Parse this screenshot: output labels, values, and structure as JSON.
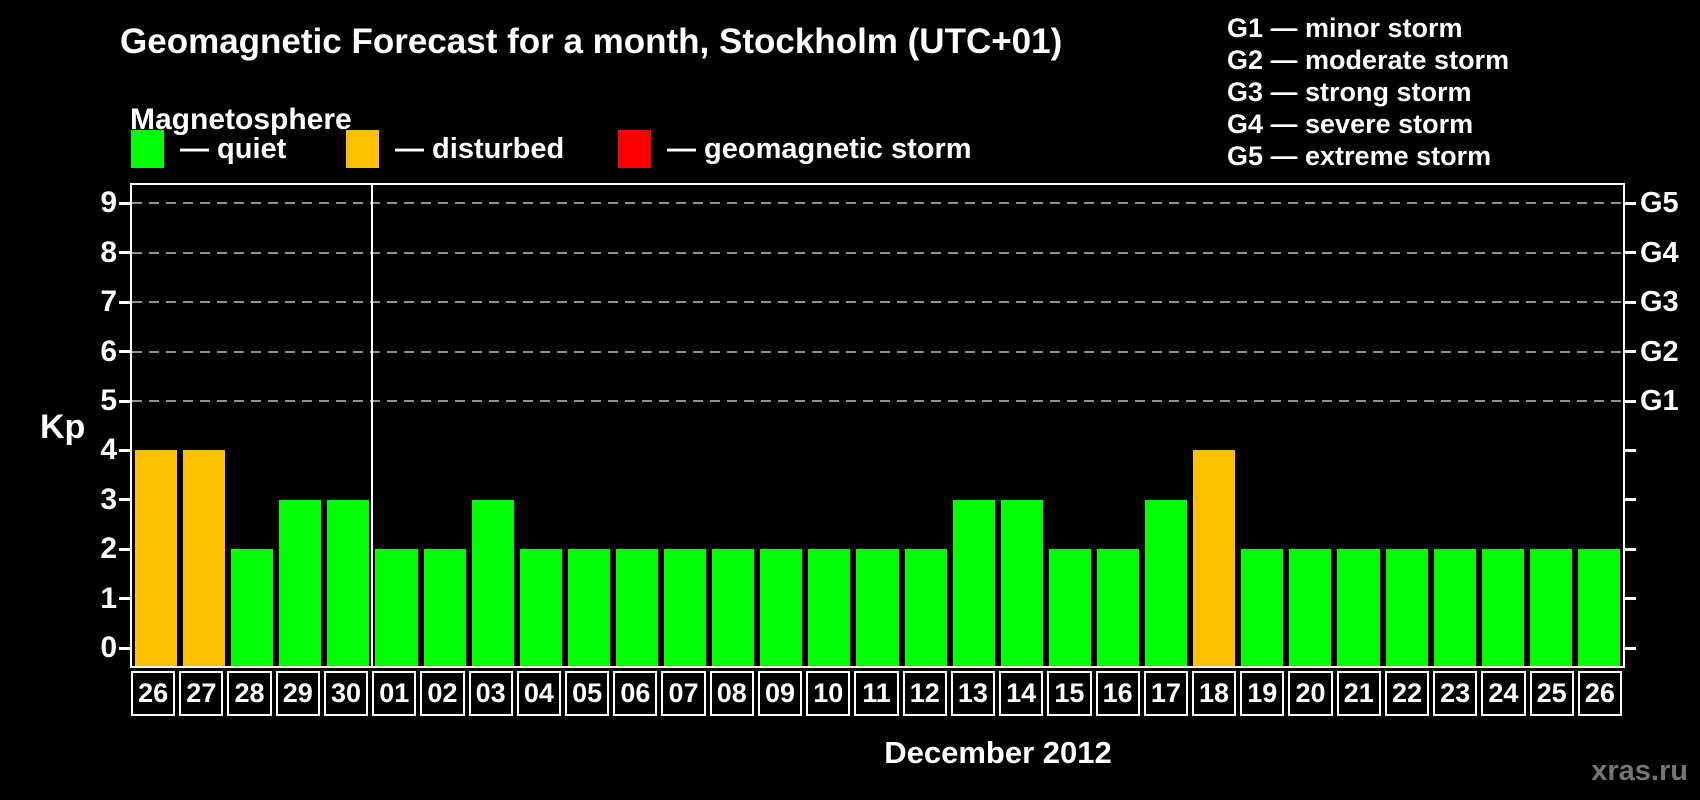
{
  "header": {
    "title": "Geomagnetic Forecast for a month, Stockholm (UTC+01)",
    "subtitle": "Magnetosphere"
  },
  "legend": {
    "items": [
      {
        "key": "quiet",
        "label": "— quiet",
        "color": "#00ff00"
      },
      {
        "key": "disturbed",
        "label": "— disturbed",
        "color": "#ffc000"
      },
      {
        "key": "storm",
        "label": "— geomagnetic storm",
        "color": "#ff0000"
      }
    ]
  },
  "storm_scale": {
    "items": [
      "G1 — minor storm",
      "G2 — moderate storm",
      "G3 — strong storm",
      "G4 — severe storm",
      "G5 — extreme storm"
    ]
  },
  "footer": {
    "month_label": "December 2012",
    "watermark": "xras.ru"
  },
  "chart_data": {
    "type": "bar",
    "title": "Geomagnetic Forecast for a month, Stockholm (UTC+01)",
    "ylabel": "Kp",
    "xlabel": "December 2012",
    "ylim": [
      0,
      9
    ],
    "y_ticks": [
      0,
      1,
      2,
      3,
      4,
      5,
      6,
      7,
      8,
      9
    ],
    "right_axis": {
      "labels": [
        "G1",
        "G2",
        "G3",
        "G4",
        "G5"
      ],
      "at_kp": [
        5,
        6,
        7,
        8,
        9
      ]
    },
    "grid": "dashed horizontal lines at Kp 5-9",
    "legend_position": "top",
    "categories": [
      "26",
      "27",
      "28",
      "29",
      "30",
      "01",
      "02",
      "03",
      "04",
      "05",
      "06",
      "07",
      "08",
      "09",
      "10",
      "11",
      "12",
      "13",
      "14",
      "15",
      "16",
      "17",
      "18",
      "19",
      "20",
      "21",
      "22",
      "23",
      "24",
      "25",
      "26"
    ],
    "values": [
      4,
      4,
      2,
      3,
      3,
      2,
      2,
      3,
      2,
      2,
      2,
      2,
      2,
      2,
      2,
      2,
      2,
      3,
      3,
      2,
      2,
      3,
      4,
      2,
      2,
      2,
      2,
      2,
      2,
      2,
      2
    ],
    "statuses": [
      "disturbed",
      "disturbed",
      "quiet",
      "quiet",
      "quiet",
      "quiet",
      "quiet",
      "quiet",
      "quiet",
      "quiet",
      "quiet",
      "quiet",
      "quiet",
      "quiet",
      "quiet",
      "quiet",
      "quiet",
      "quiet",
      "quiet",
      "quiet",
      "quiet",
      "quiet",
      "disturbed",
      "quiet",
      "quiet",
      "quiet",
      "quiet",
      "quiet",
      "quiet",
      "quiet",
      "quiet"
    ],
    "status_colors": {
      "quiet": "#00ff00",
      "disturbed": "#ffc000",
      "storm": "#ff0000"
    },
    "december_start_index": 5,
    "previous_month_days": 5
  }
}
